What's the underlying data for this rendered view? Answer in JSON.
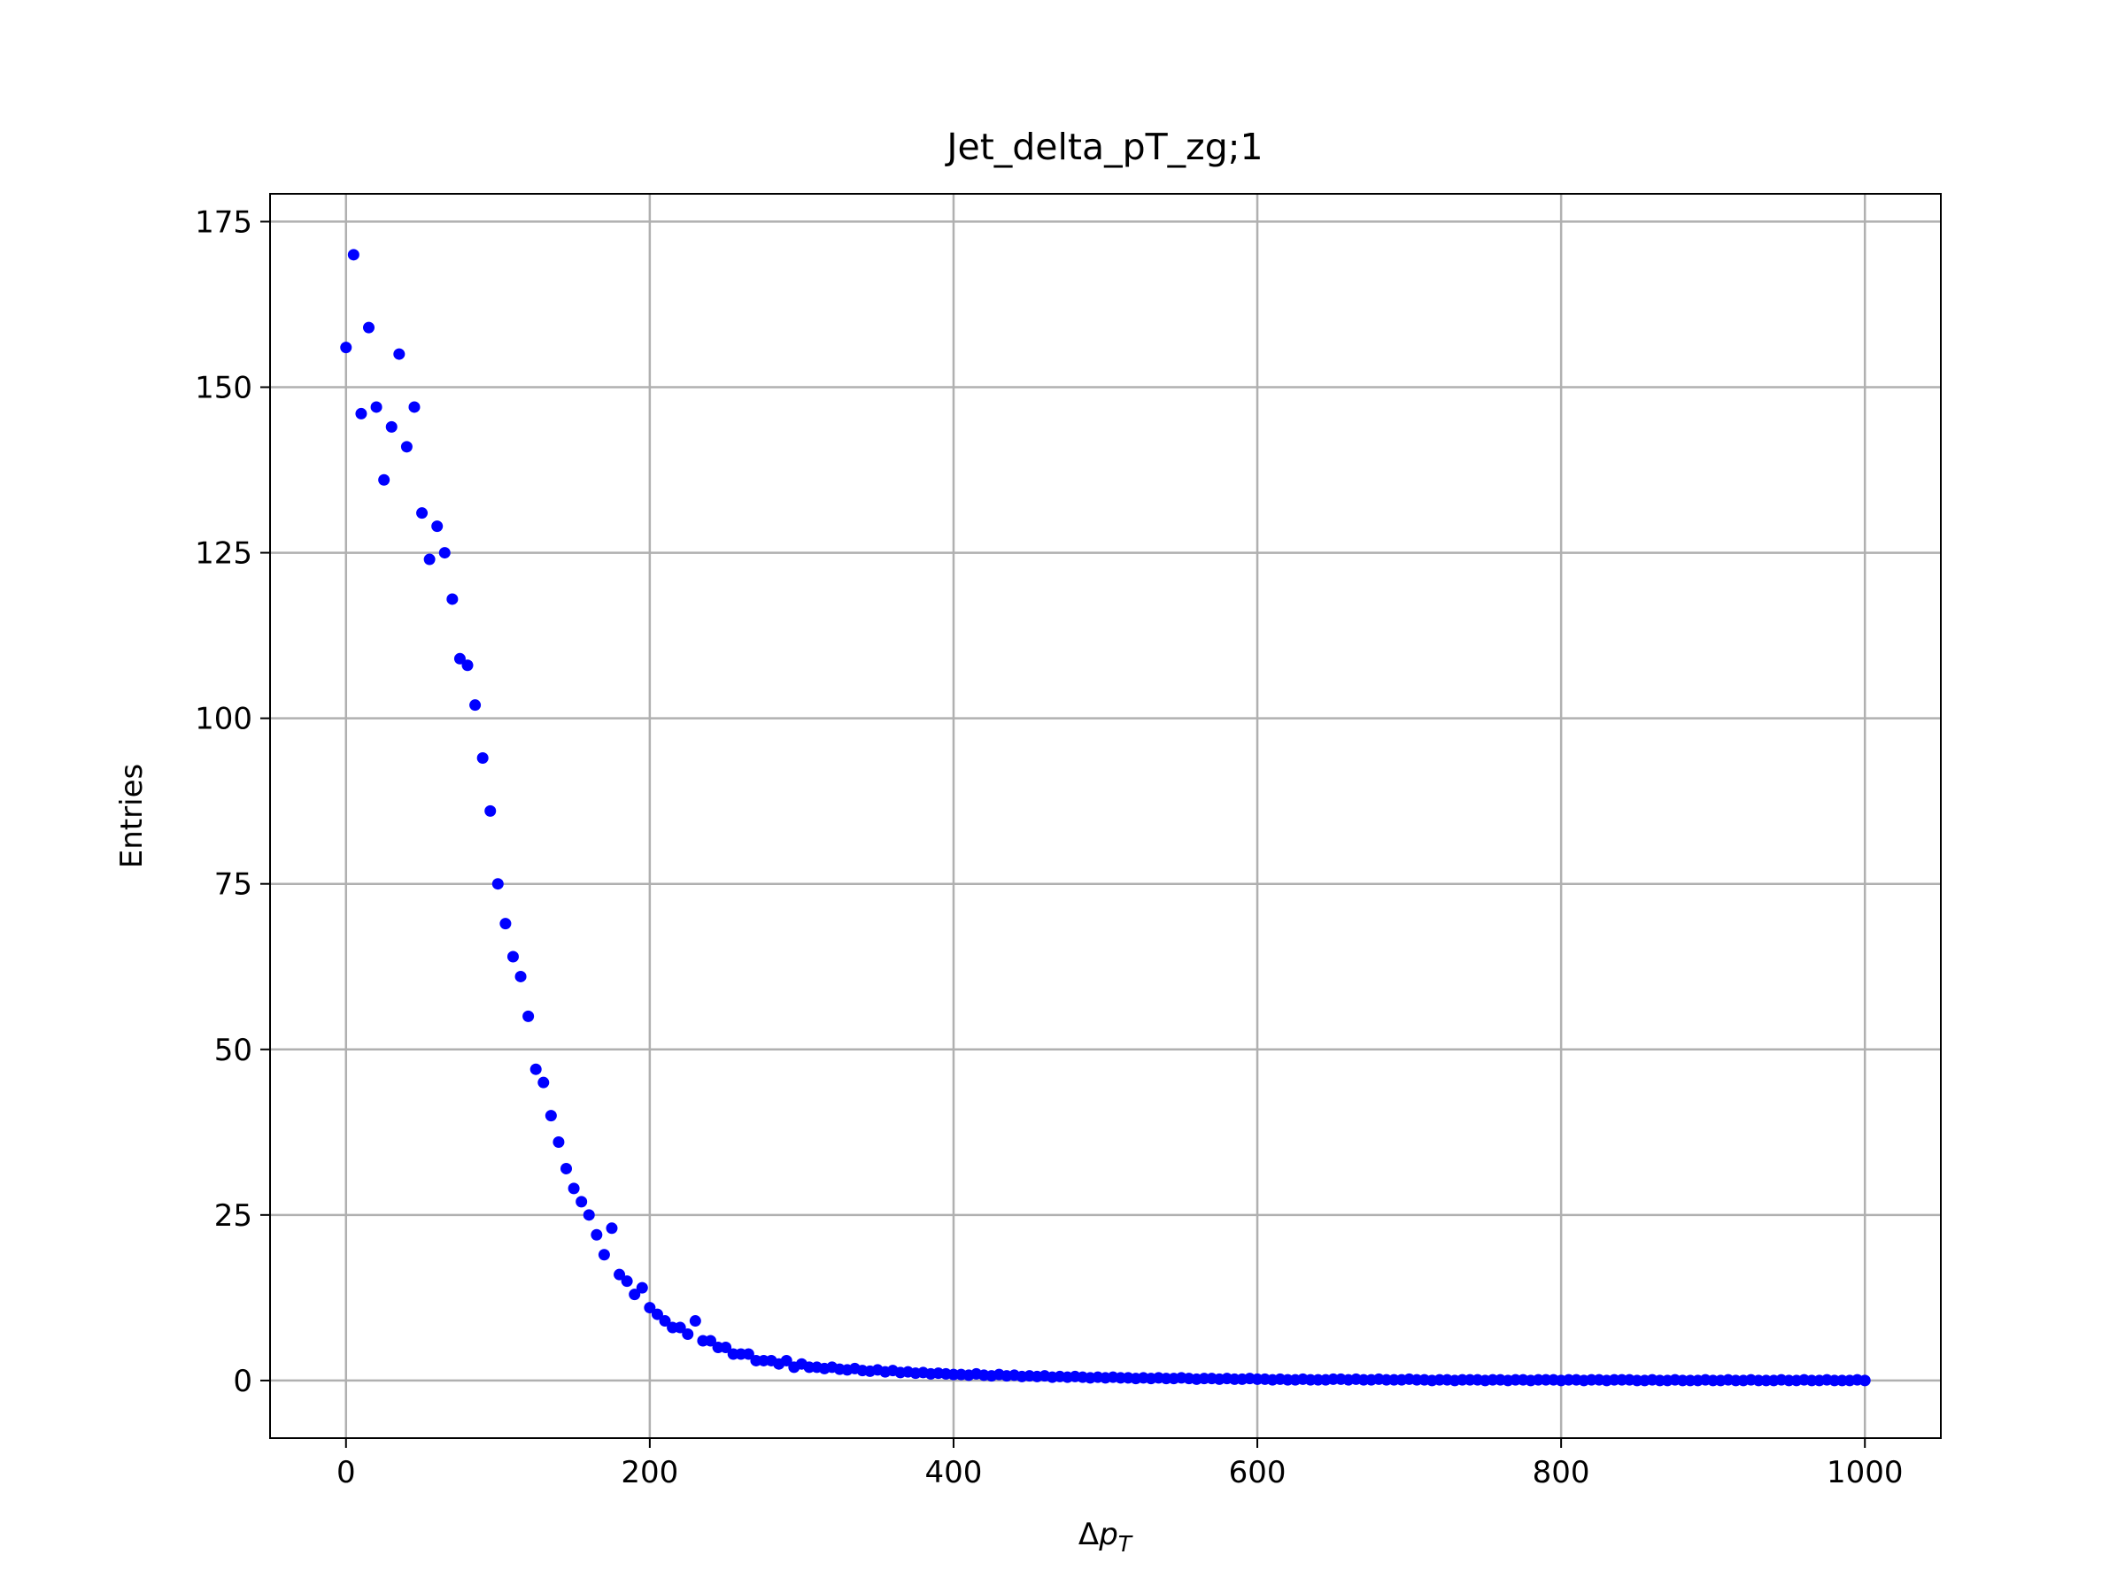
{
  "chart_data": {
    "type": "scatter",
    "title": "Jet_delta_pT_zg;1",
    "x_label": "ΔpT",
    "y_label": "Entries",
    "color": "#0000ff",
    "grid": true,
    "xlim": [
      -50,
      1050
    ],
    "ylim": [
      -8.7,
      179.2
    ],
    "xticks": [
      0,
      200,
      400,
      600,
      800,
      1000
    ],
    "yticks": [
      0,
      25,
      50,
      75,
      100,
      125,
      150,
      175
    ],
    "x": [
      0,
      5,
      10,
      15,
      20,
      25,
      30,
      35,
      40,
      45,
      50,
      55,
      60,
      65,
      70,
      75,
      80,
      85,
      90,
      95,
      100,
      105,
      110,
      115,
      120,
      125,
      130,
      135,
      140,
      145,
      150,
      155,
      160,
      165,
      170,
      175,
      180,
      185,
      190,
      195,
      200,
      205,
      210,
      215,
      220,
      225,
      230,
      235,
      240,
      245,
      250,
      255,
      260,
      265,
      270,
      275,
      280,
      285,
      290,
      295,
      300,
      305,
      310,
      315,
      320,
      325,
      330,
      335,
      340,
      345,
      350,
      355,
      360,
      365,
      370,
      375,
      380,
      385,
      390,
      395,
      400,
      405,
      410,
      415,
      420,
      425,
      430,
      435,
      440,
      445,
      450,
      455,
      460,
      465,
      470,
      475,
      480,
      485,
      490,
      495,
      500,
      505,
      510,
      515,
      520,
      525,
      530,
      535,
      540,
      545,
      550,
      555,
      560,
      565,
      570,
      575,
      580,
      585,
      590,
      595,
      600,
      605,
      610,
      615,
      620,
      625,
      630,
      635,
      640,
      645,
      650,
      655,
      660,
      665,
      670,
      675,
      680,
      685,
      690,
      695,
      700,
      705,
      710,
      715,
      720,
      725,
      730,
      735,
      740,
      745,
      750,
      755,
      760,
      765,
      770,
      775,
      780,
      785,
      790,
      795,
      800,
      805,
      810,
      815,
      820,
      825,
      830,
      835,
      840,
      845,
      850,
      855,
      860,
      865,
      870,
      875,
      880,
      885,
      890,
      895,
      900,
      905,
      910,
      915,
      920,
      925,
      930,
      935,
      940,
      945,
      950,
      955,
      960,
      965,
      970,
      975,
      980,
      985,
      990,
      995,
      1000
    ],
    "values": [
      156,
      170,
      146,
      159,
      147,
      136,
      144,
      155,
      141,
      147,
      131,
      124,
      129,
      125,
      118,
      109,
      108,
      102,
      94,
      86,
      75,
      69,
      64,
      61,
      55,
      47,
      45,
      40,
      36,
      32,
      29,
      27,
      25,
      22,
      19,
      23,
      16,
      15,
      13,
      14,
      11,
      10,
      9,
      8,
      8,
      7,
      9,
      6,
      6,
      5,
      5,
      4,
      4,
      4,
      3,
      3,
      3,
      2.5,
      3,
      2,
      2.5,
      2,
      2,
      1.8,
      2,
      1.7,
      1.6,
      1.8,
      1.5,
      1.4,
      1.6,
      1.3,
      1.5,
      1.2,
      1.3,
      1.1,
      1.2,
      1.0,
      1.1,
      1.0,
      0.9,
      0.9,
      0.8,
      1,
      0.8,
      0.7,
      0.9,
      0.7,
      0.8,
      0.6,
      0.7,
      0.6,
      0.7,
      0.5,
      0.6,
      0.5,
      0.6,
      0.5,
      0.4,
      0.5,
      0.4,
      0.5,
      0.4,
      0.4,
      0.3,
      0.4,
      0.3,
      0.4,
      0.3,
      0.3,
      0.4,
      0.3,
      0.2,
      0.3,
      0.3,
      0.2,
      0.3,
      0.2,
      0.2,
      0.3,
      0.2,
      0.2,
      0.1,
      0.2,
      0.1,
      0.1,
      0.2,
      0.1,
      0.1,
      0.1,
      0.2,
      0.2,
      0.1,
      0.2,
      0.1,
      0.1,
      0.2,
      0.1,
      0.1,
      0.1,
      0.2,
      0.1,
      0.1,
      0,
      0.1,
      0.1,
      0,
      0.1,
      0.1,
      0.1,
      0,
      0.1,
      0.1,
      0,
      0.1,
      0.1,
      0,
      0.1,
      0.1,
      0.1,
      0,
      0.1,
      0.1,
      0,
      0.1,
      0.1,
      0,
      0.1,
      0.1,
      0.1,
      0,
      0,
      0.1,
      0,
      0,
      0.1,
      0,
      0,
      0,
      0.1,
      0,
      0,
      0.1,
      0,
      0,
      0.1,
      0,
      0,
      0,
      0.1,
      0,
      0,
      0.1,
      0,
      0,
      0.1,
      0,
      0,
      0,
      0.1,
      0
    ]
  }
}
